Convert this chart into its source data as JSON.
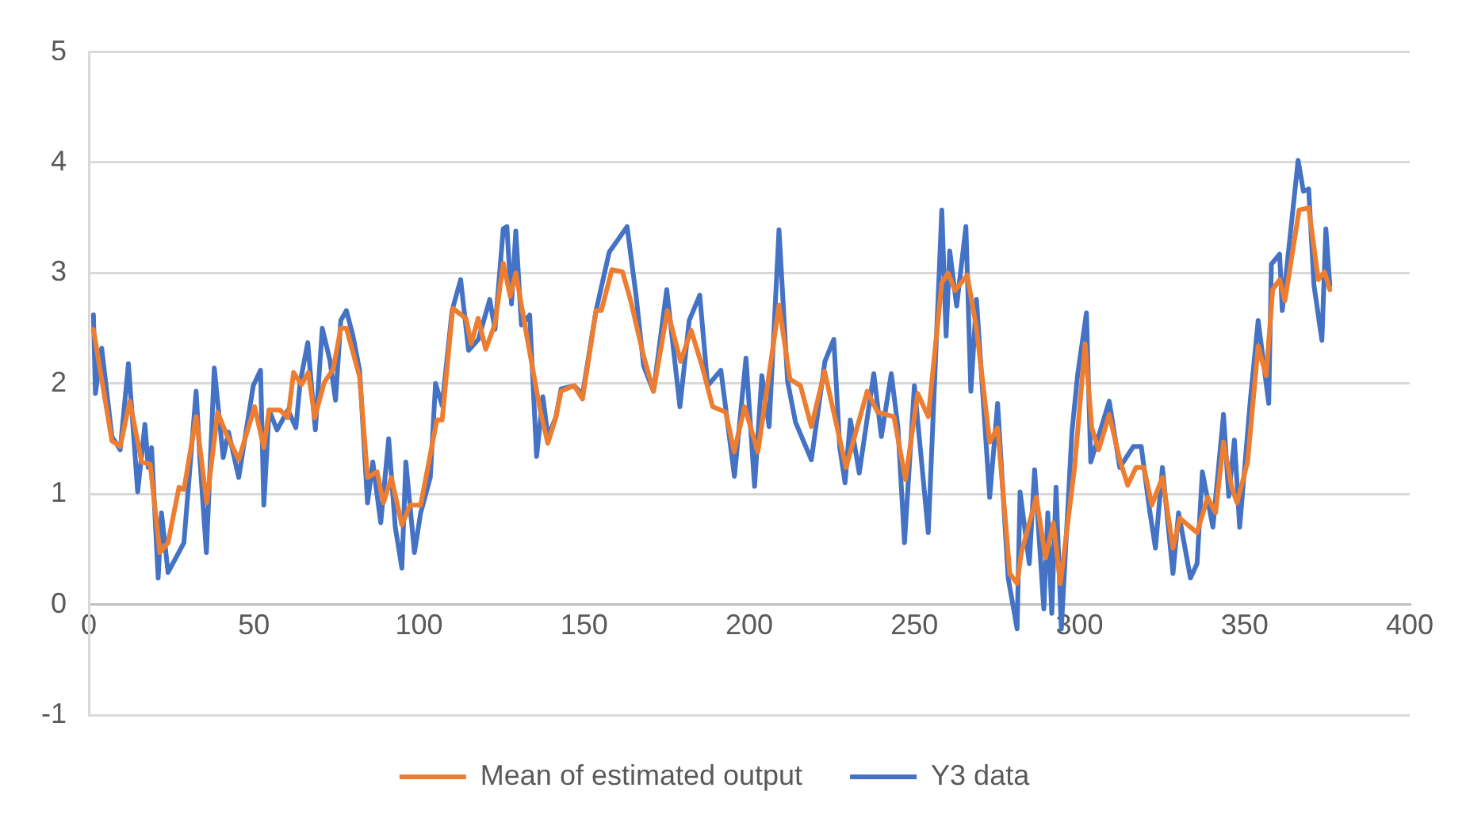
{
  "chart_data": {
    "type": "line",
    "xlim": [
      0,
      400
    ],
    "xticks": [
      0,
      50,
      100,
      150,
      200,
      250,
      300,
      350,
      400
    ],
    "ylim": [
      -1,
      5
    ],
    "yticks": [
      -1,
      0,
      1,
      2,
      3,
      4,
      5
    ],
    "grid": "y",
    "legend": "bottom",
    "marker": "none",
    "line_style": "solid",
    "series": [
      {
        "name": "Y3 data",
        "color": "#4472c4",
        "x": [
          1.4,
          2,
          3.9,
          7,
          9.5,
          12,
          14.8,
          17,
          18,
          19,
          21,
          22,
          24,
          28.8,
          32.5,
          33.7,
          35.6,
          38,
          40.7,
          42.3,
          45.4,
          49.8,
          52,
          53,
          54.6,
          57,
          60.3,
          62.7,
          64,
          66.3,
          68.6,
          70.7,
          73,
          74.7,
          76.3,
          78,
          80,
          82,
          84.4,
          86,
          88.4,
          90.8,
          92.8,
          94.8,
          96,
          98.6,
          100.5,
          103.4,
          105,
          107,
          110,
          112.6,
          115,
          118,
          121.4,
          123,
          125.5,
          126.6,
          128,
          129.3,
          131,
          133.5,
          135.6,
          137.5,
          139,
          141.4,
          143,
          147,
          149.5,
          153.6,
          157.6,
          163,
          165.7,
          168,
          171,
          175,
          179,
          181.8,
          185,
          187.4,
          191.4,
          195.5,
          199,
          201.6,
          203.8,
          206,
          209,
          211.6,
          214,
          218.8,
          222.9,
          225.6,
          227.4,
          229,
          230.6,
          233.3,
          237.7,
          240,
          243,
          245,
          247,
          250,
          254.2,
          258.3,
          259.6,
          260.7,
          262.8,
          265.6,
          267.1,
          268.8,
          272.8,
          275.2,
          278.4,
          281.1,
          282,
          284.8,
          286.4,
          289.2,
          290.4,
          291.6,
          292.9,
          294.5,
          297.7,
          299.4,
          302.1,
          303.4,
          309,
          312.2,
          316.3,
          318.7,
          321.1,
          323,
          325.1,
          328.3,
          330,
          333.6,
          335.6,
          337.2,
          340.4,
          343.6,
          345.2,
          346.9,
          348.5,
          351.7,
          354.1,
          357.3,
          358.1,
          360.6,
          361.4,
          366.2,
          367.8,
          369.4,
          371,
          373.4,
          374.6,
          375.8
        ],
        "values": [
          2.62,
          1.91,
          2.32,
          1.52,
          1.4,
          2.18,
          1.02,
          1.63,
          1.24,
          1.42,
          0.24,
          0.83,
          0.29,
          0.56,
          1.93,
          1.29,
          0.47,
          2.14,
          1.33,
          1.56,
          1.15,
          1.98,
          2.12,
          0.9,
          1.76,
          1.58,
          1.76,
          1.6,
          2.01,
          2.37,
          1.58,
          2.5,
          2.21,
          1.85,
          2.57,
          2.66,
          2.43,
          2.12,
          0.92,
          1.29,
          0.74,
          1.5,
          0.7,
          0.33,
          1.29,
          0.47,
          0.83,
          1.15,
          2.0,
          1.8,
          2.66,
          2.94,
          2.3,
          2.4,
          2.76,
          2.49,
          3.4,
          3.42,
          2.72,
          3.38,
          2.53,
          2.62,
          1.34,
          1.88,
          1.52,
          1.69,
          1.95,
          1.98,
          1.9,
          2.66,
          3.19,
          3.42,
          2.8,
          2.16,
          1.93,
          2.85,
          1.79,
          2.57,
          2.8,
          1.98,
          2.12,
          1.16,
          2.23,
          1.07,
          2.07,
          1.61,
          3.39,
          2.02,
          1.65,
          1.31,
          2.2,
          2.4,
          1.42,
          1.1,
          1.67,
          1.19,
          2.09,
          1.52,
          2.09,
          1.61,
          0.56,
          1.98,
          0.65,
          3.57,
          2.43,
          3.2,
          2.7,
          3.42,
          1.93,
          2.76,
          0.97,
          1.82,
          0.24,
          -0.22,
          1.02,
          0.37,
          1.22,
          -0.04,
          0.83,
          -0.08,
          1.06,
          -0.22,
          1.56,
          2.07,
          2.64,
          1.29,
          1.84,
          1.24,
          1.43,
          1.43,
          0.88,
          0.51,
          1.24,
          0.28,
          0.83,
          0.24,
          0.37,
          1.2,
          0.7,
          1.72,
          0.98,
          1.49,
          0.7,
          1.84,
          2.57,
          1.82,
          3.08,
          3.17,
          2.66,
          4.02,
          3.74,
          3.76,
          2.89,
          2.39,
          3.4,
          2.89
        ]
      },
      {
        "name": "Mean of estimated output",
        "color": "#ed7d31",
        "x": [
          1.4,
          7,
          9.5,
          12.4,
          16,
          18.6,
          21.5,
          24,
          27.3,
          28.8,
          32.5,
          35.7,
          39,
          41.7,
          45.4,
          50.2,
          53,
          54.6,
          57.9,
          60.3,
          62,
          64.4,
          66.5,
          68.4,
          71.3,
          74,
          76.3,
          78,
          82,
          84.4,
          87.3,
          89.2,
          91.6,
          94.8,
          97.3,
          100.5,
          105.4,
          107,
          110.2,
          114.2,
          115.8,
          117.9,
          120.2,
          123,
          125.5,
          127.6,
          129.3,
          132.8,
          136.8,
          139,
          141.4,
          143,
          147,
          149.5,
          153.6,
          155.2,
          158.4,
          161.6,
          164,
          168,
          171,
          175.2,
          179.2,
          182.4,
          185.7,
          188.9,
          192.9,
          195.4,
          198.6,
          202.6,
          209,
          212.3,
          215.5,
          218.8,
          222.8,
          229.3,
          235.7,
          238.9,
          243.8,
          247.3,
          251,
          254.2,
          258.3,
          260.2,
          262.3,
          266,
          268.8,
          272.8,
          275.2,
          278.9,
          281.1,
          282.4,
          286.9,
          289.7,
          292.1,
          294.2,
          298.5,
          301.7,
          303.7,
          305.8,
          309,
          312.2,
          314.6,
          317.1,
          319.5,
          321.9,
          325.1,
          328.3,
          330.4,
          335.6,
          338.8,
          341.2,
          343.6,
          346.1,
          347.7,
          350.9,
          354.1,
          356.5,
          358.5,
          360.6,
          362.2,
          366.5,
          369.4,
          372.3,
          374.2,
          375.8
        ],
        "values": [
          2.49,
          1.48,
          1.43,
          1.84,
          1.29,
          1.27,
          0.47,
          0.56,
          1.06,
          1.04,
          1.7,
          0.92,
          1.74,
          1.54,
          1.31,
          1.79,
          1.42,
          1.76,
          1.76,
          1.69,
          2.1,
          1.99,
          2.1,
          1.69,
          2.01,
          2.13,
          2.5,
          2.5,
          2.06,
          1.15,
          1.2,
          0.92,
          1.15,
          0.72,
          0.9,
          0.9,
          1.67,
          1.67,
          2.68,
          2.59,
          2.36,
          2.59,
          2.31,
          2.54,
          3.09,
          2.79,
          3.0,
          2.4,
          1.74,
          1.46,
          1.69,
          1.93,
          1.98,
          1.86,
          2.66,
          2.66,
          3.03,
          3.01,
          2.76,
          2.25,
          1.93,
          2.66,
          2.2,
          2.48,
          2.16,
          1.79,
          1.74,
          1.38,
          1.79,
          1.38,
          2.71,
          2.04,
          1.98,
          1.61,
          2.11,
          1.24,
          1.93,
          1.74,
          1.7,
          1.13,
          1.91,
          1.7,
          2.91,
          3.0,
          2.84,
          2.98,
          2.5,
          1.47,
          1.6,
          0.28,
          0.19,
          0.47,
          0.97,
          0.42,
          0.74,
          0.19,
          1.24,
          2.36,
          1.6,
          1.4,
          1.72,
          1.31,
          1.08,
          1.24,
          1.24,
          0.9,
          1.15,
          0.51,
          0.78,
          0.65,
          0.97,
          0.83,
          1.47,
          1.06,
          0.92,
          1.29,
          2.34,
          2.07,
          2.85,
          2.94,
          2.75,
          3.57,
          3.59,
          2.94,
          3.01,
          2.85
        ]
      }
    ]
  }
}
